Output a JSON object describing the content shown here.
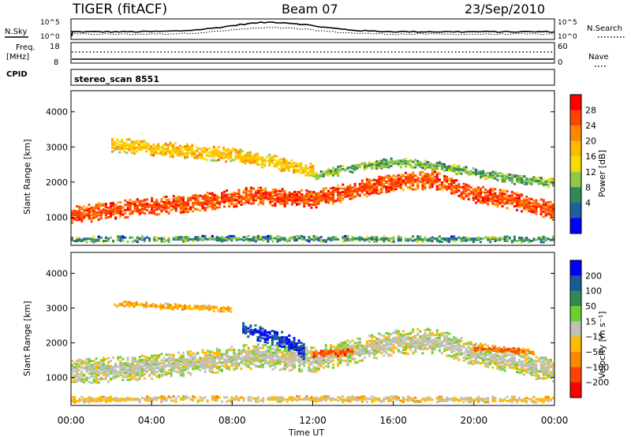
{
  "header": {
    "title": "TIGER (fitACF)",
    "beam": "Beam 07",
    "date": "23/Sep/2010"
  },
  "top_panels": {
    "nsky_label": "N.Sky",
    "nsky_ticks": [
      "10^5",
      "10^0"
    ],
    "nsearch_label": "N.Search",
    "nsearch_ticks": [
      "10^5",
      "10^0"
    ],
    "freq_label_1": "Freq.",
    "freq_label_2": "[MHz]",
    "freq_ticks": [
      "18",
      "8"
    ],
    "nave_label": "Nave",
    "nave_ticks": [
      "60",
      "0"
    ],
    "cpid_label": "CPID",
    "cpid_value": "stereo_scan 8551"
  },
  "colorbars": {
    "power": {
      "label": "Power [dB]",
      "ticks": [
        "28",
        "24",
        "20",
        "16",
        "12",
        "8",
        "4"
      ],
      "colors": [
        "#ff0000",
        "#ff4400",
        "#ff8800",
        "#ffbb00",
        "#f5dc00",
        "#8fc84a",
        "#2e8b57",
        "#1f5fa0",
        "#0000ff"
      ]
    },
    "velocity": {
      "label": "Velocity [m s⁻¹]",
      "ticks": [
        "200",
        "100",
        "50",
        "15",
        "−15",
        "−50",
        "−100",
        "−200"
      ],
      "colors": [
        "#0000ff",
        "#1a5a9a",
        "#2e8b57",
        "#6ccf2a",
        "#c0c0b8",
        "#ffbb00",
        "#ff8800",
        "#ff4400",
        "#ff0000"
      ]
    }
  },
  "chart_data": [
    {
      "type": "heatmap",
      "name": "power",
      "ylabel": "Slant Range [km]",
      "yticks": [
        "4000",
        "3000",
        "2000",
        "1000"
      ],
      "ylim": [
        200,
        4600
      ],
      "xlim": [
        "00:00",
        "24:00"
      ],
      "colorbar_label": "Power [dB]",
      "colorbar_range": [
        0,
        30
      ],
      "bands": [
        {
          "x": [
            0,
            3,
            6,
            9,
            12,
            14,
            16,
            18,
            20,
            22,
            24
          ],
          "range_km": [
            1100,
            1300,
            1450,
            1650,
            1550,
            1800,
            2050,
            2100,
            1700,
            1500,
            1200
          ],
          "width_km": 500,
          "level_db": 26
        },
        {
          "x": [
            2,
            4,
            6,
            8,
            10,
            12
          ],
          "range_km": [
            3100,
            3000,
            2900,
            2800,
            2600,
            2350
          ],
          "width_km": 400,
          "level_db": 18
        },
        {
          "x": [
            12,
            14,
            16,
            18,
            20,
            22,
            24
          ],
          "range_km": [
            2200,
            2450,
            2600,
            2500,
            2300,
            2100,
            2000
          ],
          "width_km": 250,
          "level_db": 10
        },
        {
          "x": [
            0,
            6,
            12,
            18,
            24
          ],
          "range_km": [
            400,
            420,
            420,
            410,
            400
          ],
          "width_km": 150,
          "level_db": 8
        }
      ]
    },
    {
      "type": "heatmap",
      "name": "velocity",
      "ylabel": "Slant Range [km]",
      "yticks": [
        "4000",
        "3000",
        "2000",
        "1000"
      ],
      "ylim": [
        200,
        4600
      ],
      "xlim": [
        "00:00",
        "24:00"
      ],
      "xticks": [
        "00:00",
        "04:00",
        "08:00",
        "12:00",
        "16:00",
        "20:00",
        "00:00"
      ],
      "xlabel": "Time UT",
      "colorbar_label": "Velocity [m s⁻¹]",
      "colorbar_range": [
        -250,
        250
      ],
      "bands": [
        {
          "x": [
            0,
            3,
            6,
            9,
            12,
            14,
            16,
            18,
            20,
            22,
            24
          ],
          "range_km": [
            1200,
            1300,
            1450,
            1650,
            1550,
            1800,
            2050,
            2100,
            1700,
            1500,
            1200
          ],
          "width_km": 700,
          "vel": 0
        },
        {
          "x": [
            8.5,
            9.5,
            10.5,
            11.5
          ],
          "range_km": [
            2400,
            2300,
            2100,
            1800
          ],
          "width_km": 450,
          "vel": 220
        },
        {
          "x": [
            2,
            4,
            6,
            8
          ],
          "range_km": [
            3150,
            3100,
            3050,
            3000
          ],
          "width_km": 150,
          "vel": -80
        },
        {
          "x": [
            12,
            13,
            14
          ],
          "range_km": [
            1700,
            1750,
            1800
          ],
          "width_km": 200,
          "vel": -180
        },
        {
          "x": [
            20,
            21,
            22,
            23
          ],
          "range_km": [
            1900,
            1850,
            1800,
            1750
          ],
          "width_km": 150,
          "vel": -150
        },
        {
          "x": [
            0,
            6,
            12,
            18,
            24
          ],
          "range_km": [
            400,
            420,
            420,
            410,
            400
          ],
          "width_km": 150,
          "vel": -40
        }
      ]
    }
  ]
}
